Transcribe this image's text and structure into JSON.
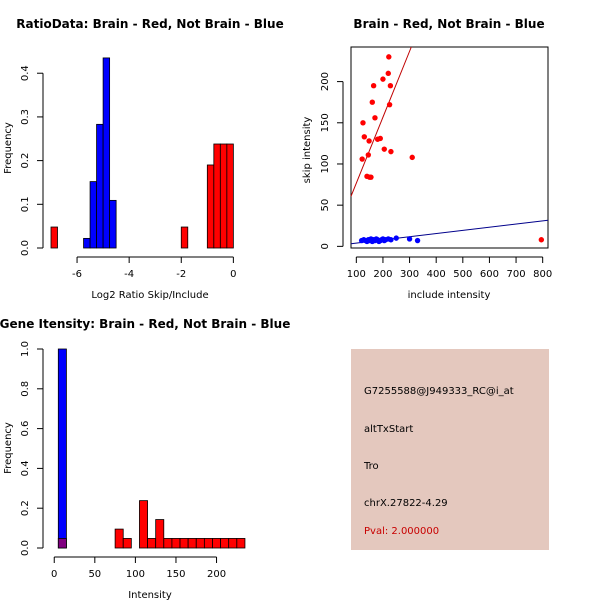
{
  "colors": {
    "brain": "#ff0000",
    "not_brain": "#0000ff",
    "overlap": "#800080",
    "panel": "#e4c8be",
    "pval": "#c80000",
    "fit_brain": "#c00000",
    "fit_not_brain": "#00008b"
  },
  "chart_data": [
    {
      "type": "bar",
      "subtype": "histogram",
      "title": "RatioData: Brain - Red, Not Brain - Blue",
      "xlabel": "Log2 Ratio Skip/Include",
      "ylabel": "Frequency",
      "xlim": [
        -7,
        0.6
      ],
      "ylim": [
        0,
        0.46
      ],
      "xticks": [
        -6,
        -4,
        -2,
        0
      ],
      "yticks": [
        0.0,
        0.1,
        0.2,
        0.3,
        0.4
      ],
      "bin_width": 0.25,
      "series": [
        {
          "name": "Not Brain",
          "color": "blue",
          "bins": [
            [
              -5.75,
              0.022
            ],
            [
              -5.5,
              0.152
            ],
            [
              -5.25,
              0.283
            ],
            [
              -5.0,
              0.435
            ],
            [
              -4.75,
              0.109
            ]
          ]
        },
        {
          "name": "Brain",
          "color": "red",
          "bins": [
            [
              -7.0,
              0.048
            ],
            [
              -2.0,
              0.048
            ],
            [
              -1.0,
              0.19
            ],
            [
              -0.75,
              0.238
            ],
            [
              -0.5,
              0.238
            ],
            [
              -0.25,
              0.238
            ]
          ]
        }
      ]
    },
    {
      "type": "scatter",
      "title": "Brain - Red, Not Brain - Blue",
      "xlabel": "include intensity",
      "ylabel": "skip intensity",
      "xlim": [
        80,
        820
      ],
      "ylim": [
        -2,
        242
      ],
      "xticks": [
        100,
        200,
        300,
        400,
        500,
        600,
        700,
        800
      ],
      "yticks": [
        0,
        50,
        100,
        150,
        200
      ],
      "series": [
        {
          "name": "Brain",
          "color": "red",
          "points": [
            [
              122,
              106
            ],
            [
              125,
              150
            ],
            [
              130,
              133
            ],
            [
              140,
              85
            ],
            [
              145,
              111
            ],
            [
              148,
              128
            ],
            [
              150,
              84
            ],
            [
              155,
              84
            ],
            [
              160,
              175
            ],
            [
              165,
              195
            ],
            [
              170,
              156
            ],
            [
              180,
              130
            ],
            [
              190,
              131
            ],
            [
              200,
              203
            ],
            [
              205,
              118
            ],
            [
              220,
              210
            ],
            [
              222,
              230
            ],
            [
              225,
              172
            ],
            [
              228,
              195
            ],
            [
              230,
              115
            ],
            [
              310,
              108
            ],
            [
              795,
              8
            ]
          ]
        },
        {
          "name": "Not Brain",
          "color": "blue",
          "points": [
            [
              120,
              7
            ],
            [
              128,
              8
            ],
            [
              135,
              7
            ],
            [
              140,
              6
            ],
            [
              145,
              8
            ],
            [
              150,
              7
            ],
            [
              155,
              9
            ],
            [
              160,
              6
            ],
            [
              165,
              8
            ],
            [
              170,
              7
            ],
            [
              175,
              9
            ],
            [
              180,
              8
            ],
            [
              185,
              6
            ],
            [
              190,
              7
            ],
            [
              195,
              8
            ],
            [
              200,
              9
            ],
            [
              205,
              7
            ],
            [
              210,
              8
            ],
            [
              220,
              9
            ],
            [
              230,
              8
            ],
            [
              250,
              10
            ],
            [
              300,
              9
            ],
            [
              330,
              7
            ]
          ]
        }
      ],
      "fit_lines": [
        {
          "name": "Brain fit",
          "color": "darkred",
          "intercept": -3.2,
          "slope": 0.8
        },
        {
          "name": "Not Brain fit",
          "color": "darkblue",
          "intercept": 0.15,
          "slope": 0.0385
        }
      ]
    },
    {
      "type": "bar",
      "subtype": "histogram",
      "title": "Gene Itensity: Brain - Red, Not Brain - Blue",
      "xlabel": "Intensity",
      "ylabel": "Frequency",
      "xlim": [
        -4,
        240
      ],
      "ylim": [
        0,
        1.0
      ],
      "xticks": [
        0,
        50,
        100,
        150,
        200
      ],
      "yticks": [
        0.0,
        0.2,
        0.4,
        0.6,
        0.8,
        1.0
      ],
      "bin_width": 10,
      "series": [
        {
          "name": "Not Brain",
          "color": "blue",
          "bins": [
            [
              5,
              1.0
            ]
          ]
        },
        {
          "name": "Brain",
          "color": "red",
          "bins": [
            [
              5,
              0.048
            ],
            [
              75,
              0.095
            ],
            [
              85,
              0.048
            ],
            [
              105,
              0.238
            ],
            [
              115,
              0.048
            ],
            [
              125,
              0.143
            ],
            [
              135,
              0.048
            ],
            [
              145,
              0.048
            ],
            [
              155,
              0.048
            ],
            [
              165,
              0.048
            ],
            [
              175,
              0.048
            ],
            [
              185,
              0.048
            ],
            [
              195,
              0.048
            ],
            [
              205,
              0.048
            ],
            [
              215,
              0.048
            ],
            [
              225,
              0.048
            ]
          ]
        }
      ]
    }
  ],
  "info": {
    "probe_id": "G7255588@J949333_RC@i_at",
    "event_type": "altTxStart",
    "gene": "Tro",
    "location": "chrX.27822-4.29",
    "pval": "Pval: 2.000000"
  }
}
